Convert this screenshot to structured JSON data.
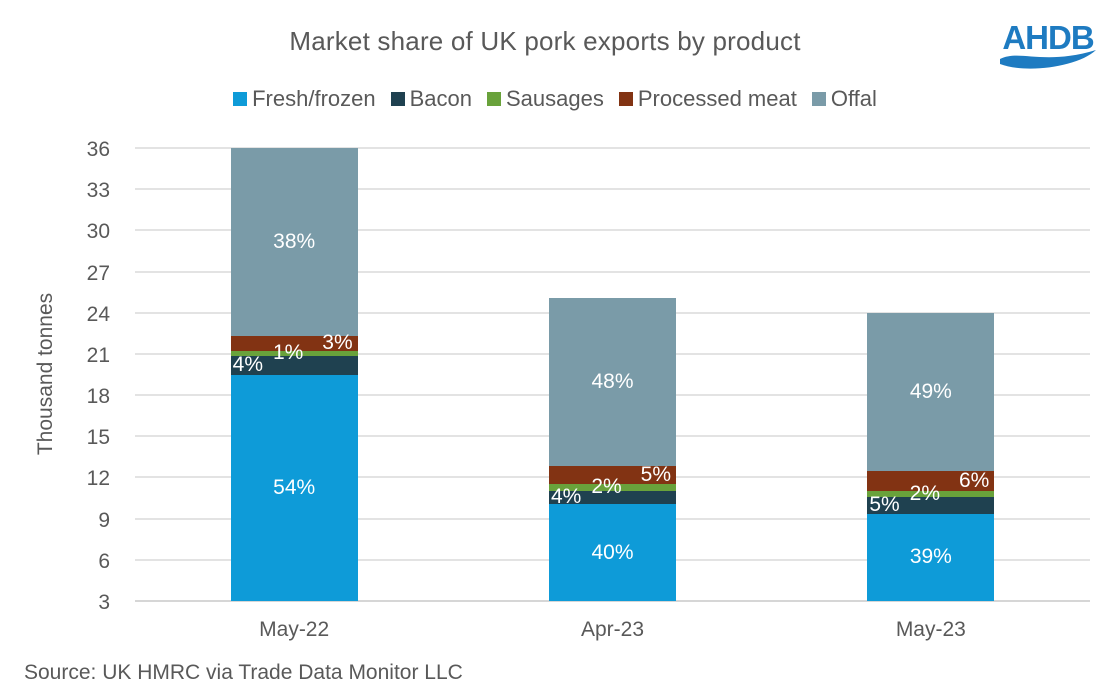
{
  "header": {
    "title": "Market share of UK pork exports by product",
    "logo_text": "AHDB",
    "logo_color": "#1e7bc1"
  },
  "chart_data": {
    "type": "bar",
    "stacked": true,
    "title": "Market share of UK pork exports by product",
    "ylabel": "Thousand tonnes",
    "xlabel": "",
    "grid": true,
    "legend_position": "top",
    "axis": {
      "min": 3,
      "max": 36,
      "step": 3
    },
    "categories": [
      "May-22",
      "Apr-23",
      "May-23"
    ],
    "totals_thousand_tonnes": [
      36.0,
      25.1,
      24.0
    ],
    "series": [
      {
        "name": "Fresh/frozen",
        "color": "#0e9bd8",
        "share_pct": [
          54,
          40,
          39
        ],
        "labels": [
          "54%",
          "40%",
          "39%"
        ],
        "label_align": "center"
      },
      {
        "name": "Bacon",
        "color": "#1f4150",
        "share_pct": [
          4,
          4,
          5
        ],
        "labels": [
          "4%",
          "4%",
          "5%"
        ],
        "label_align": "left"
      },
      {
        "name": "Sausages",
        "color": "#69a23b",
        "share_pct": [
          1,
          2,
          2
        ],
        "labels": [
          "1%",
          "2%",
          "2%"
        ],
        "label_align": "center-left"
      },
      {
        "name": "Processed meat",
        "color": "#823313",
        "share_pct": [
          3,
          5,
          6
        ],
        "labels": [
          "3%",
          "5%",
          "6%"
        ],
        "label_align": "right"
      },
      {
        "name": "Offal",
        "color": "#7a9ba8",
        "share_pct": [
          38,
          48,
          49
        ],
        "labels": [
          "38%",
          "48%",
          "49%"
        ],
        "label_align": "center"
      }
    ],
    "source": "Source: UK HMRC via Trade Data Monitor LLC"
  }
}
